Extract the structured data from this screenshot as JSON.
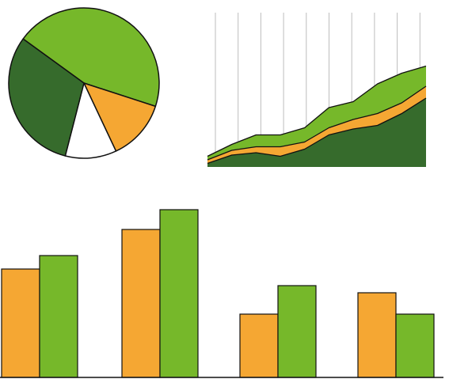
{
  "colors": {
    "light_green": "#76b82a",
    "dark_green": "#366b2c",
    "orange": "#f5a733",
    "white": "#ffffff",
    "outline": "#111111",
    "grid": "#bdbdbd"
  },
  "chart_data": [
    {
      "type": "pie",
      "values": [
        45,
        13,
        11,
        31
      ],
      "colors": [
        "#76b82a",
        "#f5a733",
        "#ffffff",
        "#366b2c"
      ]
    },
    {
      "type": "area",
      "stacked": true,
      "x": [
        0,
        1,
        2,
        3,
        4,
        5,
        6,
        7,
        8,
        9
      ],
      "grid": "vertical",
      "series": [
        {
          "color": "#366b2c",
          "values": [
            3,
            10,
            12,
            9,
            15,
            27,
            32,
            35,
            45,
            58
          ]
        },
        {
          "color": "#f5a733",
          "values": [
            3,
            4,
            5,
            8,
            6,
            6,
            8,
            10,
            9,
            10
          ]
        },
        {
          "color": "#76b82a",
          "values": [
            3,
            5,
            10,
            10,
            12,
            17,
            15,
            25,
            25,
            17
          ]
        }
      ]
    },
    {
      "type": "bar",
      "categories": [
        "",
        "",
        "",
        ""
      ],
      "ylim": [
        0,
        215
      ],
      "series": [
        {
          "color": "#f5a733",
          "values": [
            137,
            187,
            80,
            107
          ]
        },
        {
          "color": "#76b82a",
          "values": [
            154,
            212,
            116,
            80
          ]
        }
      ]
    }
  ]
}
